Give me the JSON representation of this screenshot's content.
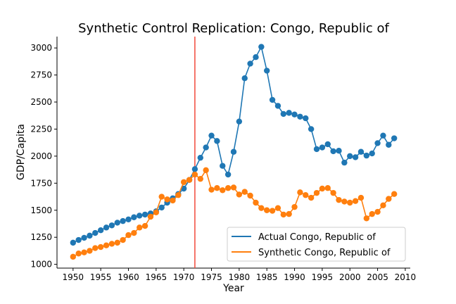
{
  "chart_data": {
    "type": "line",
    "title": "Synthetic Control Replication: Congo, Republic of",
    "xlabel": "Year",
    "ylabel": "GDP/Capita",
    "xlim": [
      1947.1,
      2010.9
    ],
    "ylim": [
      965,
      3105
    ],
    "xticks": [
      1950,
      1955,
      1960,
      1965,
      1970,
      1975,
      1980,
      1985,
      1990,
      1995,
      2000,
      2005,
      2010
    ],
    "yticks": [
      1000,
      1250,
      1500,
      1750,
      2000,
      2250,
      2500,
      2750,
      3000
    ],
    "grid": false,
    "legend_position": "lower-right",
    "treatment_year": 1972,
    "treatment_color": "#f2493b",
    "x": [
      1950,
      1951,
      1952,
      1953,
      1954,
      1955,
      1956,
      1957,
      1958,
      1959,
      1960,
      1961,
      1962,
      1963,
      1964,
      1965,
      1966,
      1967,
      1968,
      1969,
      1970,
      1971,
      1972,
      1973,
      1974,
      1975,
      1976,
      1977,
      1978,
      1979,
      1980,
      1981,
      1982,
      1983,
      1984,
      1985,
      1986,
      1987,
      1988,
      1989,
      1990,
      1991,
      1992,
      1993,
      1994,
      1995,
      1996,
      1997,
      1998,
      1999,
      2000,
      2001,
      2002,
      2003,
      2004,
      2005,
      2006,
      2007,
      2008
    ],
    "series": [
      {
        "name": "Actual Congo, Republic of",
        "color": "#1f77b4",
        "values": [
          1200,
          1225,
          1245,
          1265,
          1290,
          1315,
          1340,
          1360,
          1385,
          1400,
          1415,
          1435,
          1450,
          1460,
          1470,
          1490,
          1525,
          1570,
          1610,
          1650,
          1700,
          1780,
          1880,
          1985,
          2080,
          2190,
          2140,
          1910,
          1830,
          2040,
          2320,
          2720,
          2855,
          2915,
          3010,
          2790,
          2520,
          2465,
          2390,
          2400,
          2385,
          2365,
          2350,
          2250,
          2065,
          2080,
          2110,
          2045,
          2050,
          1940,
          2000,
          1990,
          2040,
          2005,
          2025,
          2120,
          2190,
          2105,
          2165
        ]
      },
      {
        "name": "Synthetic Congo, Republic of",
        "color": "#ff7f0e",
        "values": [
          1070,
          1100,
          1110,
          1125,
          1150,
          1160,
          1175,
          1190,
          1200,
          1225,
          1270,
          1290,
          1340,
          1355,
          1440,
          1480,
          1625,
          1600,
          1590,
          1640,
          1760,
          1780,
          1830,
          1790,
          1870,
          1690,
          1705,
          1685,
          1705,
          1710,
          1645,
          1670,
          1635,
          1570,
          1520,
          1500,
          1495,
          1520,
          1460,
          1465,
          1530,
          1665,
          1640,
          1615,
          1660,
          1700,
          1705,
          1660,
          1595,
          1580,
          1570,
          1585,
          1615,
          1425,
          1465,
          1485,
          1545,
          1605,
          1650
        ]
      }
    ]
  }
}
